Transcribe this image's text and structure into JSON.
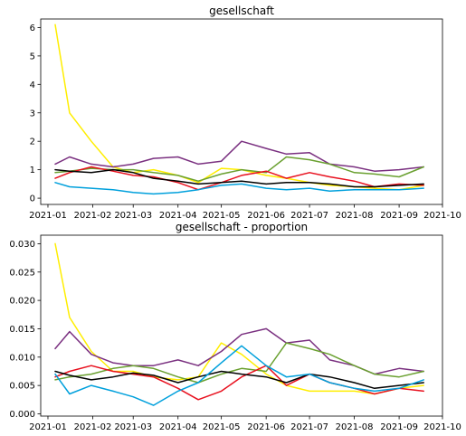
{
  "chart_data": [
    {
      "type": "line",
      "title": "gesellschaft",
      "xlabel": "",
      "ylabel": "",
      "x_ticks": [
        "2021-01",
        "2021-02",
        "2021-03",
        "2021-04",
        "2021-05",
        "2021-06",
        "2021-07",
        "2021-08",
        "2021-09",
        "2021-10"
      ],
      "y_ticks": [
        "0",
        "1",
        "2",
        "3",
        "4",
        "5",
        "6"
      ],
      "ylim": [
        -0.22,
        6.3
      ],
      "xlim": [
        "2020-12-27",
        "2021-10-01"
      ],
      "grid": false,
      "x": [
        "2021-01-06",
        "2021-01-16",
        "2021-01-31",
        "2021-02-15",
        "2021-03-01",
        "2021-03-15",
        "2021-04-01",
        "2021-04-15",
        "2021-05-01",
        "2021-05-15",
        "2021-06-01",
        "2021-06-15",
        "2021-07-01",
        "2021-07-15",
        "2021-08-01",
        "2021-08-15",
        "2021-09-01",
        "2021-09-18"
      ],
      "series": [
        {
          "color": "#ffee00",
          "values": [
            6.1,
            3.0,
            2.0,
            1.1,
            0.9,
            1.0,
            0.8,
            0.55,
            1.05,
            1.0,
            0.8,
            0.7,
            0.55,
            0.45,
            0.4,
            0.35,
            0.3,
            0.45
          ]
        },
        {
          "color": "#7a3080",
          "values": [
            1.2,
            1.45,
            1.2,
            1.1,
            1.2,
            1.4,
            1.45,
            1.2,
            1.3,
            2.0,
            1.75,
            1.55,
            1.6,
            1.2,
            1.1,
            0.95,
            1.0,
            1.1
          ]
        },
        {
          "color": "#6aa030",
          "values": [
            0.9,
            0.95,
            1.05,
            1.0,
            1.0,
            0.9,
            0.8,
            0.6,
            0.85,
            1.0,
            0.9,
            1.45,
            1.35,
            1.2,
            0.9,
            0.85,
            0.75,
            1.1
          ]
        },
        {
          "color": "#e8101e",
          "values": [
            0.7,
            0.9,
            1.1,
            0.95,
            0.8,
            0.75,
            0.55,
            0.3,
            0.55,
            0.8,
            0.95,
            0.7,
            0.9,
            0.75,
            0.6,
            0.4,
            0.5,
            0.45
          ]
        },
        {
          "color": "#000000",
          "values": [
            1.0,
            0.95,
            0.9,
            1.0,
            0.9,
            0.7,
            0.6,
            0.5,
            0.55,
            0.6,
            0.5,
            0.55,
            0.55,
            0.5,
            0.4,
            0.4,
            0.45,
            0.5
          ]
        },
        {
          "color": "#00a0dc",
          "values": [
            0.55,
            0.4,
            0.35,
            0.3,
            0.2,
            0.15,
            0.2,
            0.3,
            0.45,
            0.5,
            0.35,
            0.3,
            0.35,
            0.25,
            0.3,
            0.3,
            0.3,
            0.35
          ]
        }
      ]
    },
    {
      "type": "line",
      "title": "gesellschaft - proportion",
      "xlabel": "",
      "ylabel": "",
      "x_ticks": [
        "2021-01",
        "2021-02",
        "2021-03",
        "2021-04",
        "2021-05",
        "2021-06",
        "2021-07",
        "2021-08",
        "2021-09",
        "2021-10"
      ],
      "y_ticks": [
        "0.000",
        "0.005",
        "0.010",
        "0.015",
        "0.020",
        "0.025",
        "0.030"
      ],
      "ylim": [
        -0.0004,
        0.0315
      ],
      "xlim": [
        "2020-12-27",
        "2021-10-01"
      ],
      "grid": false,
      "x": [
        "2021-01-06",
        "2021-01-16",
        "2021-01-31",
        "2021-02-15",
        "2021-03-01",
        "2021-03-15",
        "2021-04-01",
        "2021-04-15",
        "2021-05-01",
        "2021-05-15",
        "2021-06-01",
        "2021-06-15",
        "2021-07-01",
        "2021-07-15",
        "2021-08-01",
        "2021-08-15",
        "2021-09-01",
        "2021-09-18"
      ],
      "series": [
        {
          "color": "#ffee00",
          "values": [
            0.03,
            0.017,
            0.011,
            0.0075,
            0.0075,
            0.0065,
            0.006,
            0.0065,
            0.0125,
            0.0105,
            0.007,
            0.005,
            0.004,
            0.004,
            0.004,
            0.0035,
            0.0045,
            0.005
          ]
        },
        {
          "color": "#7a3080",
          "values": [
            0.0115,
            0.0145,
            0.0105,
            0.009,
            0.0085,
            0.0085,
            0.0095,
            0.0085,
            0.011,
            0.014,
            0.015,
            0.0125,
            0.013,
            0.0095,
            0.0085,
            0.007,
            0.008,
            0.0075
          ]
        },
        {
          "color": "#6aa030",
          "values": [
            0.006,
            0.0065,
            0.007,
            0.008,
            0.0085,
            0.008,
            0.0065,
            0.0055,
            0.007,
            0.008,
            0.0075,
            0.0125,
            0.0115,
            0.0105,
            0.0085,
            0.007,
            0.0065,
            0.0075
          ]
        },
        {
          "color": "#e8101e",
          "values": [
            0.0065,
            0.0075,
            0.0085,
            0.0075,
            0.007,
            0.0065,
            0.0045,
            0.0025,
            0.004,
            0.0065,
            0.0085,
            0.005,
            0.007,
            0.0055,
            0.0045,
            0.0035,
            0.0045,
            0.004
          ]
        },
        {
          "color": "#000000",
          "values": [
            0.0075,
            0.0068,
            0.006,
            0.0065,
            0.0072,
            0.0068,
            0.0055,
            0.0065,
            0.0075,
            0.007,
            0.0065,
            0.0055,
            0.007,
            0.0065,
            0.0055,
            0.0045,
            0.005,
            0.0055
          ]
        },
        {
          "color": "#00a0dc",
          "values": [
            0.007,
            0.0035,
            0.005,
            0.004,
            0.003,
            0.0015,
            0.004,
            0.0055,
            0.009,
            0.012,
            0.0085,
            0.0065,
            0.007,
            0.0055,
            0.0045,
            0.004,
            0.0045,
            0.006
          ]
        }
      ]
    }
  ]
}
